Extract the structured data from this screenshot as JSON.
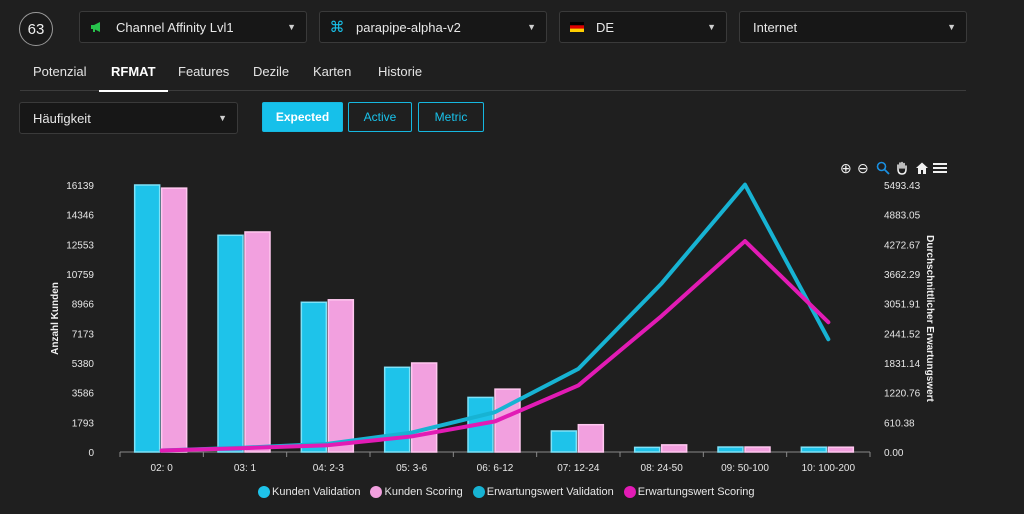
{
  "header": {
    "badge": "63",
    "selects": [
      {
        "label": "Channel Affinity Lvl1",
        "icon": "megaphone-icon"
      },
      {
        "label": "parapipe-alpha-v2",
        "icon": "command-icon"
      },
      {
        "label": "DE",
        "icon": "flag-de-icon"
      },
      {
        "label": "Internet",
        "icon": ""
      }
    ]
  },
  "tabs": [
    "Potenzial",
    "RFMAT",
    "Features",
    "Dezile",
    "Karten",
    "Historie"
  ],
  "active_tab": "RFMAT",
  "metric_select": "Häufigkeit",
  "mode_buttons": [
    "Expected",
    "Active",
    "Metric"
  ],
  "active_mode": "Expected",
  "toolbar_icons": [
    "zoom-in-icon",
    "zoom-out-icon",
    "zoom-selection-icon",
    "pan-hand-icon",
    "home-icon",
    "menu-icon"
  ],
  "colors": {
    "accent": "#16c0ea",
    "kunden_validation": "#1ec3ea",
    "kunden_scoring": "#f2a0df",
    "erwartungswert_validation": "#17b3d3",
    "erwartungswert_scoring": "#e21bb5"
  },
  "chart_data": {
    "type": "bar",
    "categories": [
      "02: 0",
      "03: 1",
      "04: 2-3",
      "05: 3-6",
      "06: 6-12",
      "07: 12-24",
      "08: 24-50",
      "09: 50-100",
      "10: 100-200"
    ],
    "ylabel": "Anzahl Kunden",
    "y2label": "Durchschnittlicher Erwartungswert",
    "ylim": [
      0,
      16139
    ],
    "y2lim": [
      0,
      5493.43
    ],
    "yticks": [
      "0",
      "1793",
      "3586",
      "5380",
      "7173",
      "8966",
      "10759",
      "12553",
      "14346",
      "16139"
    ],
    "y2ticks": [
      "0.00",
      "610.38",
      "1220.76",
      "1831.14",
      "2441.52",
      "3051.91",
      "3662.29",
      "4272.67",
      "4883.05",
      "5493.43"
    ],
    "series": [
      {
        "name": "Kunden Validation",
        "type": "bar",
        "axis": "left",
        "values": [
          16139,
          13100,
          9050,
          5120,
          3300,
          1270,
          280,
          300,
          290
        ]
      },
      {
        "name": "Kunden Scoring",
        "type": "bar",
        "axis": "left",
        "values": [
          15950,
          13300,
          9200,
          5380,
          3800,
          1650,
          430,
          300,
          290
        ]
      },
      {
        "name": "Erwartungswert Validation",
        "type": "line",
        "axis": "right",
        "values": [
          30,
          90,
          170,
          400,
          820,
          1710,
          3470,
          5500,
          2320
        ]
      },
      {
        "name": "Erwartungswert Scoring",
        "type": "line",
        "axis": "right",
        "values": [
          30,
          80,
          140,
          320,
          630,
          1370,
          2800,
          4340,
          2670
        ]
      }
    ],
    "legend_position": "bottom"
  }
}
